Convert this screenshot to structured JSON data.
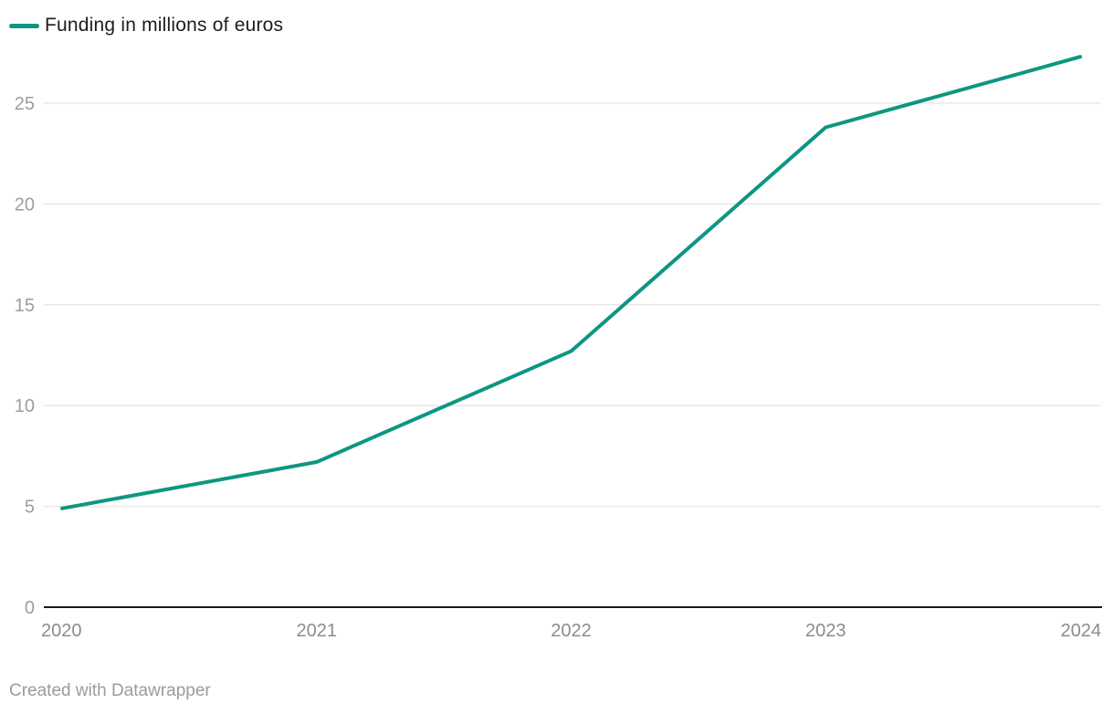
{
  "legend": {
    "label": "Funding in millions of euros"
  },
  "footer": {
    "credit": "Created with Datawrapper"
  },
  "colors": {
    "line": "#0e9682",
    "axis": "#1a1a1a",
    "grid": "#e8e8e8",
    "y_tick_label": "#9d9d9d",
    "x_tick_label": "#8c8c8c",
    "legend_text": "#1d1d1d",
    "footer_text": "#9b9b9b",
    "background": "#ffffff"
  },
  "chart_data": {
    "type": "line",
    "x": [
      2020,
      2021,
      2022,
      2023,
      2024
    ],
    "x_labels": [
      "2020",
      "2021",
      "2022",
      "2023",
      "2024"
    ],
    "series": [
      {
        "name": "Funding in millions of euros",
        "values": [
          4.9,
          7.2,
          12.7,
          23.8,
          27.3
        ]
      }
    ],
    "xlabel": "",
    "ylabel": "",
    "y_ticks": [
      0,
      5,
      10,
      15,
      20,
      25
    ],
    "ylim": [
      0,
      27.5
    ],
    "grid": "horizontal",
    "legend_position": "top-left",
    "markers": false
  }
}
